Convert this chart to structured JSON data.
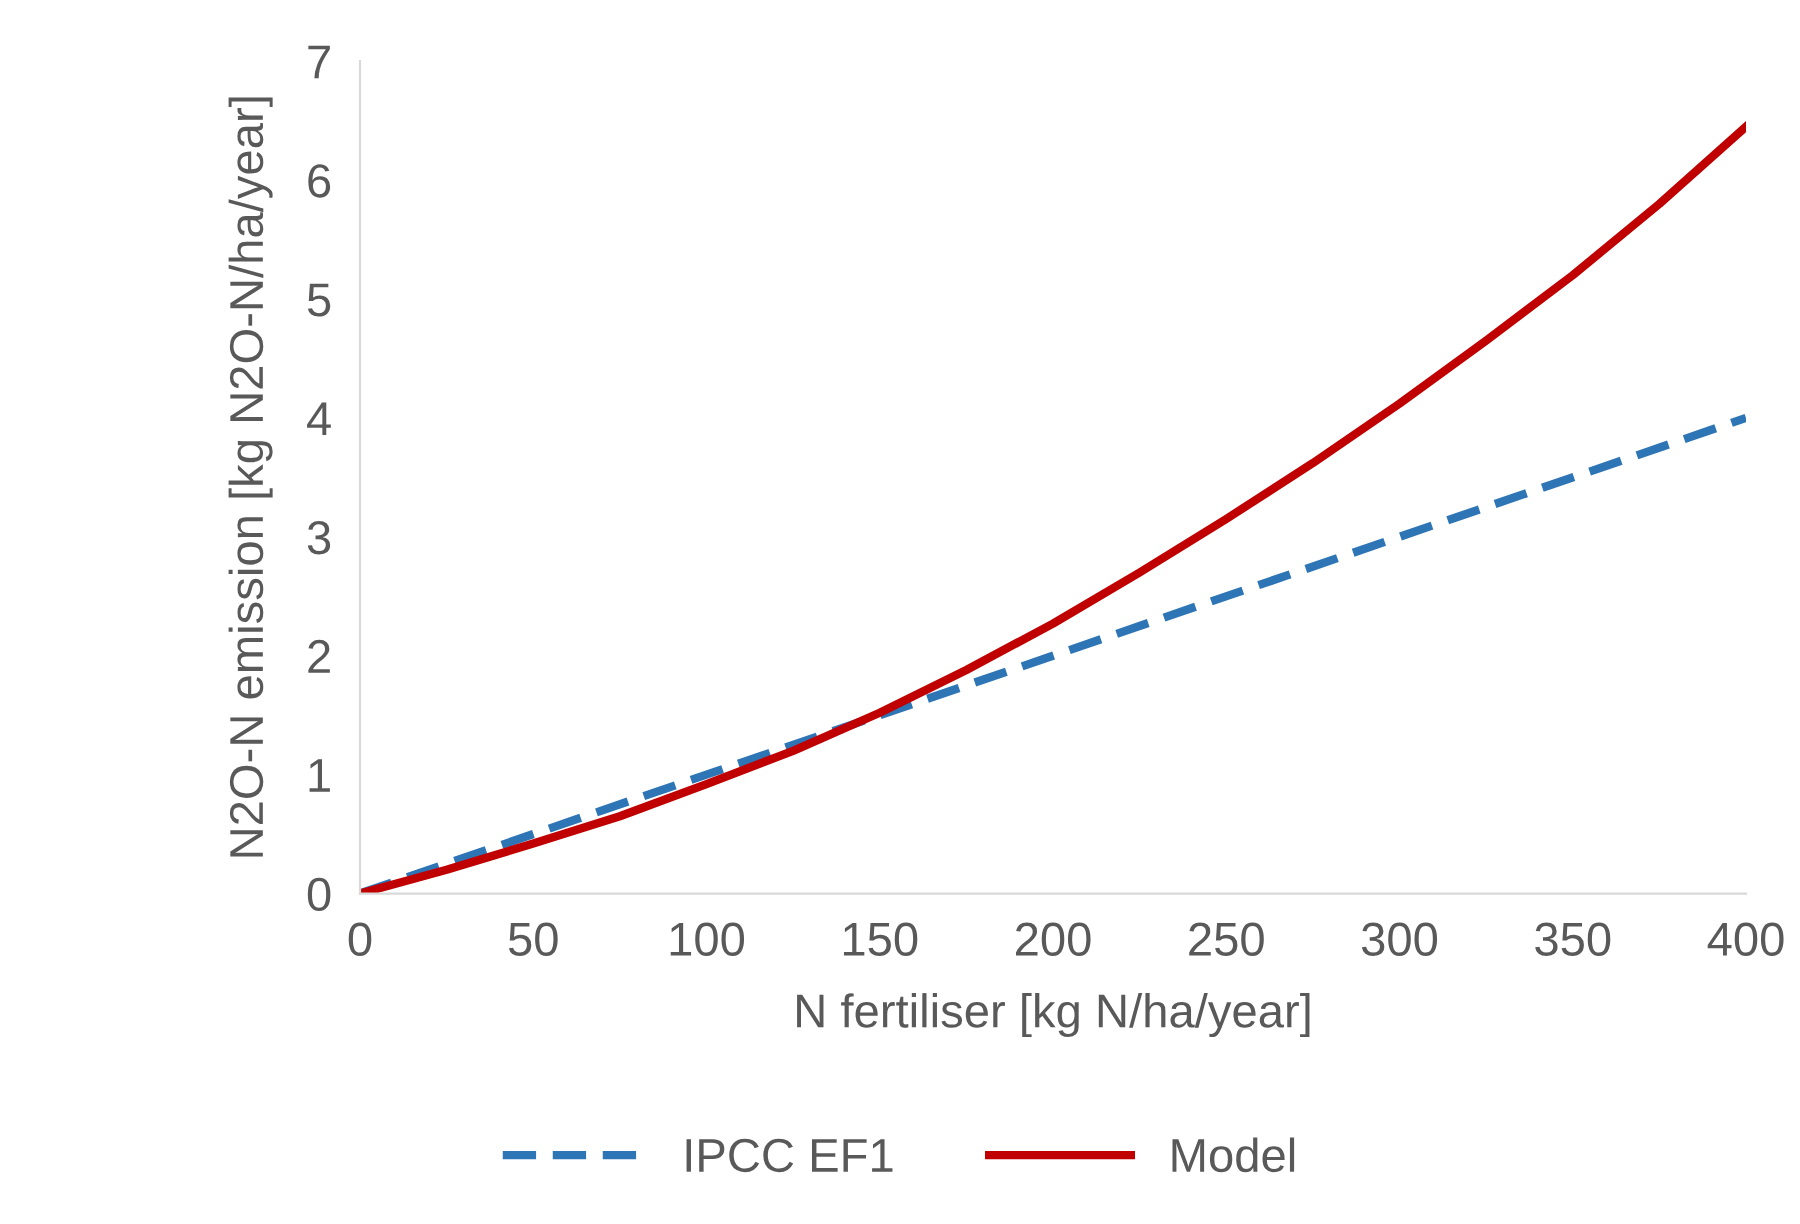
{
  "chart_data": {
    "type": "line",
    "xlabel": "N fertiliser [kg N/ha/year]",
    "ylabel": "N2O-N emission [kg N2O-N/ha/year]",
    "xlim": [
      0,
      400
    ],
    "xticks": [
      0,
      50,
      100,
      150,
      200,
      250,
      300,
      350,
      400
    ],
    "ylim": [
      0,
      7
    ],
    "yticks": [
      0,
      1,
      2,
      3,
      4,
      5,
      6,
      7
    ],
    "grid": false,
    "legend": "bottom",
    "marker": "none",
    "series": [
      {
        "name": "IPCC EF1",
        "color": "#2e75b6",
        "line_style": "dashed",
        "x": [
          0,
          400
        ],
        "values": [
          0,
          4
        ]
      },
      {
        "name": "Model",
        "color": "#c00000",
        "line_style": "solid",
        "x": [
          0,
          25,
          50,
          75,
          100,
          125,
          150,
          175,
          200,
          225,
          250,
          275,
          300,
          325,
          350,
          375,
          400
        ],
        "values": [
          0,
          0.2,
          0.42,
          0.65,
          0.92,
          1.2,
          1.52,
          1.88,
          2.27,
          2.7,
          3.15,
          3.62,
          4.12,
          4.65,
          5.2,
          5.8,
          6.45
        ]
      }
    ]
  }
}
